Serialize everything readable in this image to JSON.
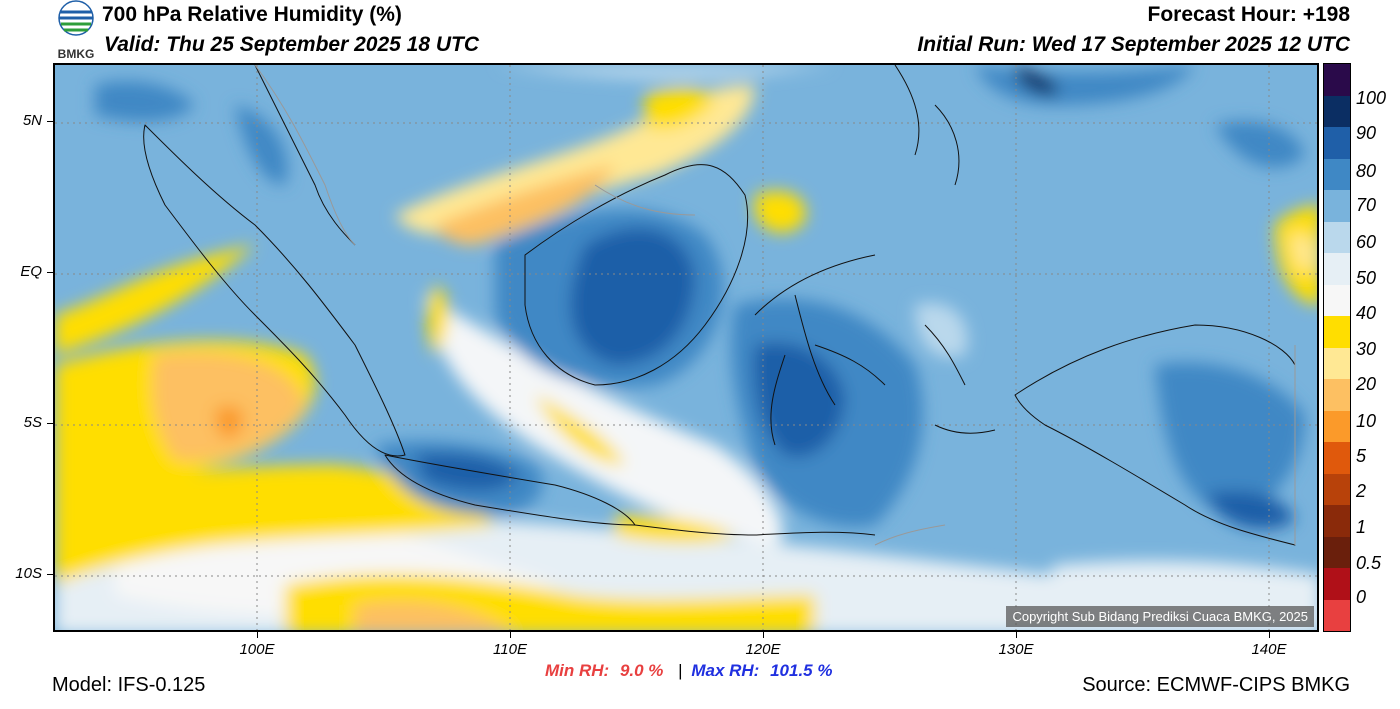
{
  "header": {
    "title": "700 hPa Relative Humidity (%)",
    "valid": "Valid: Thu 25 September 2025 18 UTC",
    "forecast_hour": "Forecast Hour: +198",
    "initial_run": "Initial Run: Wed 17 September 2025 12 UTC",
    "logo_text": "BMKG"
  },
  "map": {
    "lat_labels": [
      "5N",
      "EQ",
      "5S",
      "10S"
    ],
    "lon_labels": [
      "100E",
      "110E",
      "120E",
      "130E",
      "140E"
    ],
    "copyright": "Copyright Sub Bidang Prediksi Cuaca BMKG, 2025"
  },
  "colorbar": {
    "labels": [
      "100",
      "90",
      "80",
      "70",
      "60",
      "50",
      "40",
      "30",
      "20",
      "10",
      "5",
      "2",
      "1",
      "0.5",
      "0"
    ],
    "colors": [
      "#2a0a4a",
      "#0b2e63",
      "#1f5fa8",
      "#3f88c5",
      "#79b3dc",
      "#bad8ec",
      "#e6eff5",
      "#f7f7f7",
      "#ffde00",
      "#ffe894",
      "#fdc062",
      "#fb9a2a",
      "#e0590c",
      "#b8420a",
      "#8a2a0a",
      "#6a1f0c",
      "#b01018",
      "#e84040"
    ]
  },
  "stats": {
    "min_label": "Min RH:",
    "min_value": "9.0 %",
    "separator": "|",
    "max_label": "Max RH:",
    "max_value": "101.5 %"
  },
  "footer": {
    "model": "Model: IFS-0.125",
    "source": "Source: ECMWF-CIPS BMKG"
  }
}
